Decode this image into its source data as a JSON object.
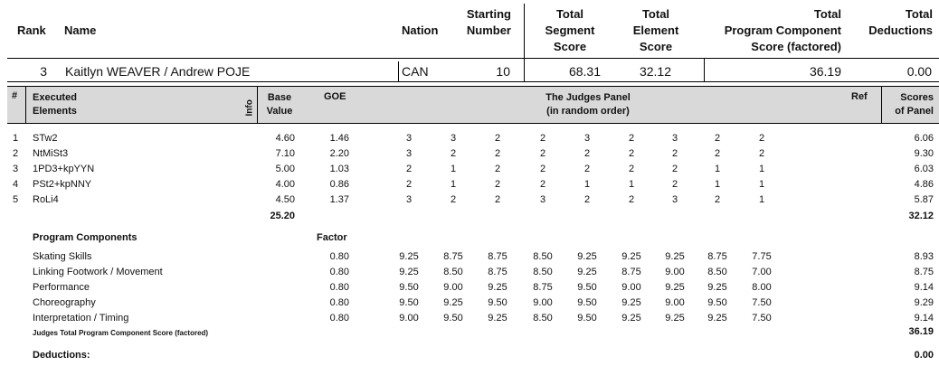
{
  "header": {
    "rank": "Rank",
    "name": "Name",
    "nation": "Nation",
    "starting_number": [
      "Starting",
      "Number"
    ],
    "tss": [
      "Total",
      "Segment",
      "Score"
    ],
    "tes": [
      "Total",
      "Element",
      "Score"
    ],
    "pcs": [
      "Total",
      "Program Component",
      "Score (factored)"
    ],
    "ded": [
      "Total",
      "Deductions"
    ]
  },
  "skater": {
    "rank": "3",
    "name": "Kaitlyn WEAVER / Andrew POJE",
    "nation": "CAN",
    "starting_number": "10",
    "tss": "68.31",
    "tes": "32.12",
    "pcs": "36.19",
    "ded": "0.00"
  },
  "elements_header": {
    "num": "#",
    "executed": [
      "Executed",
      "Elements"
    ],
    "info": "Info",
    "base": [
      "Base",
      "Value"
    ],
    "goe": "GOE",
    "judges": [
      "The Judges Panel",
      "(in random order)"
    ],
    "ref": "Ref",
    "scores": [
      "Scores",
      "of Panel"
    ]
  },
  "elements": [
    {
      "num": "1",
      "name": "STw2",
      "base": "4.60",
      "goe": "1.46",
      "judges": [
        "3",
        "3",
        "2",
        "2",
        "3",
        "2",
        "3",
        "2",
        "2"
      ],
      "score": "6.06"
    },
    {
      "num": "2",
      "name": "NtMiSt3",
      "base": "7.10",
      "goe": "2.20",
      "judges": [
        "3",
        "2",
        "2",
        "2",
        "2",
        "2",
        "2",
        "2",
        "2"
      ],
      "score": "9.30"
    },
    {
      "num": "3",
      "name": "1PD3+kpYYN",
      "base": "5.00",
      "goe": "1.03",
      "judges": [
        "2",
        "1",
        "2",
        "2",
        "2",
        "2",
        "2",
        "1",
        "1"
      ],
      "score": "6.03"
    },
    {
      "num": "4",
      "name": "PSt2+kpNNY",
      "base": "4.00",
      "goe": "0.86",
      "judges": [
        "2",
        "1",
        "2",
        "2",
        "1",
        "1",
        "2",
        "1",
        "1"
      ],
      "score": "4.86"
    },
    {
      "num": "5",
      "name": "RoLi4",
      "base": "4.50",
      "goe": "1.37",
      "judges": [
        "3",
        "2",
        "2",
        "3",
        "2",
        "2",
        "3",
        "2",
        "1"
      ],
      "score": "5.87"
    }
  ],
  "elements_total": {
    "base": "25.20",
    "score": "32.12"
  },
  "program_components": {
    "title": "Program Components",
    "factor_label": "Factor",
    "rows": [
      {
        "name": "Skating Skills",
        "factor": "0.80",
        "judges": [
          "9.25",
          "8.75",
          "8.75",
          "8.50",
          "9.25",
          "9.25",
          "9.25",
          "8.75",
          "7.75"
        ],
        "score": "8.93"
      },
      {
        "name": "Linking Footwork / Movement",
        "factor": "0.80",
        "judges": [
          "9.25",
          "8.50",
          "8.75",
          "8.50",
          "9.25",
          "8.75",
          "9.00",
          "8.50",
          "7.00"
        ],
        "score": "8.75"
      },
      {
        "name": "Performance",
        "factor": "0.80",
        "judges": [
          "9.50",
          "9.00",
          "9.25",
          "8.75",
          "9.50",
          "9.00",
          "9.25",
          "9.25",
          "8.00"
        ],
        "score": "9.14"
      },
      {
        "name": "Choreography",
        "factor": "0.80",
        "judges": [
          "9.50",
          "9.25",
          "9.50",
          "9.00",
          "9.50",
          "9.25",
          "9.00",
          "9.50",
          "7.50"
        ],
        "score": "9.29"
      },
      {
        "name": "Interpretation / Timing",
        "factor": "0.80",
        "judges": [
          "9.00",
          "9.50",
          "9.25",
          "8.50",
          "9.50",
          "9.25",
          "9.25",
          "9.25",
          "7.50"
        ],
        "score": "9.14"
      }
    ],
    "total_label": "Judges Total Program Component Score (factored)",
    "total": "36.19"
  },
  "deductions": {
    "label": "Deductions:",
    "value": "0.00"
  }
}
